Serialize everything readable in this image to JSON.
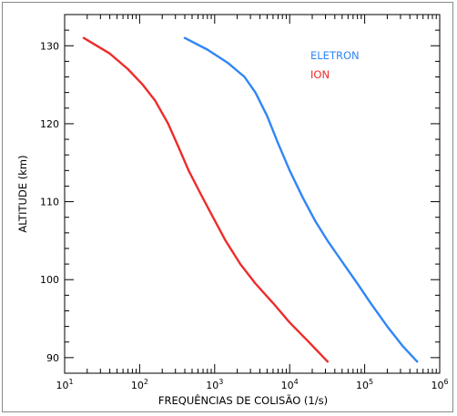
{
  "chart_data": {
    "type": "line",
    "title": "",
    "xlabel": "FREQUÊNCIAS DE COLISÃO (1/s)",
    "ylabel": "ALTITUDE (km)",
    "xscale": "log",
    "xlim": [
      10,
      1000000
    ],
    "ylim": [
      88,
      134
    ],
    "grid": false,
    "legend_position": "top-right",
    "x_ticks": [
      {
        "value": 10,
        "base": "10",
        "exp": "1"
      },
      {
        "value": 100,
        "base": "10",
        "exp": "2"
      },
      {
        "value": 1000,
        "base": "10",
        "exp": "3"
      },
      {
        "value": 10000,
        "base": "10",
        "exp": "4"
      },
      {
        "value": 100000,
        "base": "10",
        "exp": "5"
      },
      {
        "value": 1000000,
        "base": "10",
        "exp": "6"
      }
    ],
    "y_ticks": [
      90,
      100,
      110,
      120,
      130
    ],
    "series": [
      {
        "name": "ELETRON",
        "color": "#2f86f6",
        "points": [
          [
            400,
            131
          ],
          [
            800,
            129.5
          ],
          [
            1500,
            127.8
          ],
          [
            2500,
            126
          ],
          [
            3500,
            124
          ],
          [
            5000,
            121
          ],
          [
            7000,
            117.5
          ],
          [
            10000,
            114
          ],
          [
            15000,
            110.5
          ],
          [
            22000,
            107.5
          ],
          [
            32000,
            105
          ],
          [
            50000,
            102.3
          ],
          [
            80000,
            99.5
          ],
          [
            120000,
            97
          ],
          [
            200000,
            94
          ],
          [
            320000,
            91.5
          ],
          [
            500000,
            89.5
          ]
        ]
      },
      {
        "name": "ION",
        "color": "#ee2b2b",
        "points": [
          [
            18,
            131
          ],
          [
            40,
            129
          ],
          [
            70,
            127
          ],
          [
            110,
            125
          ],
          [
            160,
            123
          ],
          [
            240,
            120
          ],
          [
            330,
            117
          ],
          [
            450,
            114
          ],
          [
            650,
            111
          ],
          [
            950,
            108
          ],
          [
            1400,
            105
          ],
          [
            2200,
            102
          ],
          [
            3500,
            99.5
          ],
          [
            6000,
            97
          ],
          [
            10000,
            94.5
          ],
          [
            18000,
            92
          ],
          [
            32000,
            89.5
          ]
        ]
      }
    ]
  }
}
